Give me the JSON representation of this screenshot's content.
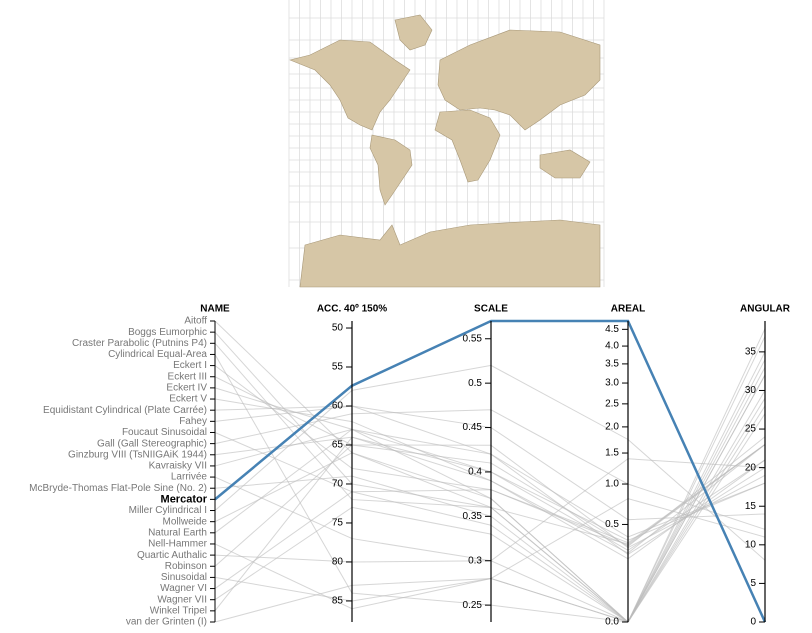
{
  "chart_data": {
    "type": "parallel",
    "category_title": "NAME",
    "dimensions": [
      {
        "name": "ACC. 40º 150%",
        "ylim": [
          87.7,
          49.1
        ],
        "yticks": [
          50,
          55,
          60,
          65,
          70,
          75,
          80,
          85
        ]
      },
      {
        "name": "SCALE",
        "ylim": [
          0.231,
          0.57
        ],
        "yticks": [
          0.25,
          0.3,
          0.35,
          0.4,
          0.45,
          0.5,
          0.55
        ]
      },
      {
        "name": "AREAL",
        "scale": "sqrt",
        "ylim": [
          0,
          4.76
        ],
        "yticks": [
          {
            "value": 0,
            "label": "0.0"
          },
          0.5,
          {
            "value": 1,
            "label": "1.0"
          },
          1.5,
          {
            "value": 2,
            "label": "2.0"
          },
          2.5,
          {
            "value": 3,
            "label": "3.0"
          },
          3.5,
          {
            "value": 4,
            "label": "4.0"
          },
          4.5
        ]
      },
      {
        "name": "ANGULAR",
        "ylim": [
          0,
          39
        ],
        "yticks": [
          0,
          5,
          10,
          15,
          20,
          25,
          30,
          35
        ]
      }
    ],
    "series": [
      {
        "name": "Aitoff",
        "color": "#bbbbbb",
        "values": [
          66,
          0.36,
          0.32,
          23
        ]
      },
      {
        "name": "Boggs Eumorphic",
        "color": "#bbbbbb",
        "values": [
          70,
          0.36,
          0,
          32
        ]
      },
      {
        "name": "Craster Parabolic (Putnins P4)",
        "color": "#bbbbbb",
        "values": [
          72,
          0.36,
          0,
          33
        ]
      },
      {
        "name": "Cylindrical Equal-Area",
        "color": "#bbbbbb",
        "values": [
          84,
          0.25,
          0,
          30
        ]
      },
      {
        "name": "Eckert I",
        "color": "#bbbbbb",
        "values": [
          68,
          0.38,
          0.33,
          23
        ]
      },
      {
        "name": "Eckert III",
        "color": "#bbbbbb",
        "values": [
          65,
          0.41,
          0.3,
          24
        ]
      },
      {
        "name": "Eckert IV",
        "color": "#bbbbbb",
        "values": [
          63,
          0.37,
          0,
          28
        ]
      },
      {
        "name": "Eckert V",
        "color": "#bbbbbb",
        "values": [
          62,
          0.39,
          0.25,
          23
        ]
      },
      {
        "name": "Equidistant Cylindrical (Plate Carrée)",
        "color": "#bbbbbb",
        "values": [
          60,
          0.42,
          0.38,
          18
        ]
      },
      {
        "name": "Fahey",
        "color": "#bbbbbb",
        "values": [
          60,
          0.45,
          0.55,
          14
        ]
      },
      {
        "name": "Foucaut Sinusoidal",
        "color": "#bbbbbb",
        "values": [
          71,
          0.34,
          0,
          34
        ]
      },
      {
        "name": "Gall (Gall Stereographic)",
        "color": "#bbbbbb",
        "values": [
          61,
          0.47,
          1.0,
          12
        ]
      },
      {
        "name": "Ginzburg VIII (TsNIIGAiK 1944)",
        "color": "#bbbbbb",
        "values": [
          64,
          0.4,
          0.35,
          18
        ]
      },
      {
        "name": "Kavraisky VII",
        "color": "#bbbbbb",
        "values": [
          63,
          0.4,
          0.27,
          21
        ]
      },
      {
        "name": "Larrivée",
        "color": "#bbbbbb",
        "values": [
          77,
          0.3,
          1.4,
          20
        ]
      },
      {
        "name": "McBryde-Thomas Flat-Pole Sine (No. 2)",
        "color": "#bbbbbb",
        "values": [
          69,
          0.35,
          0,
          32
        ]
      },
      {
        "name": "Mercator",
        "color": "#4682b4",
        "highlight": true,
        "values": [
          57.4,
          0.57,
          4.76,
          0
        ]
      },
      {
        "name": "Miller Cylindrical I",
        "color": "#bbbbbb",
        "values": [
          58,
          0.52,
          1.75,
          8
        ]
      },
      {
        "name": "Mollweide",
        "color": "#bbbbbb",
        "values": [
          66,
          0.37,
          0,
          29
        ]
      },
      {
        "name": "Natural Earth",
        "color": "#bbbbbb",
        "values": [
          63,
          0.42,
          0.24,
          20
        ]
      },
      {
        "name": "Nell-Hammer",
        "color": "#bbbbbb",
        "values": [
          86,
          0.28,
          0,
          38
        ]
      },
      {
        "name": "Quartic Authalic",
        "color": "#bbbbbb",
        "values": [
          80,
          0.3,
          0,
          35
        ]
      },
      {
        "name": "Robinson",
        "color": "#bbbbbb",
        "values": [
          65,
          0.43,
          0.29,
          19
        ]
      },
      {
        "name": "Sinusoidal",
        "color": "#bbbbbb",
        "values": [
          85,
          0.28,
          0,
          37
        ]
      },
      {
        "name": "Wagner VI",
        "color": "#bbbbbb",
        "values": [
          71,
          0.38,
          0.31,
          23
        ]
      },
      {
        "name": "Wagner VII",
        "color": "#bbbbbb",
        "values": [
          73,
          0.33,
          0,
          27
        ]
      },
      {
        "name": "Winkel Tripel",
        "color": "#bbbbbb",
        "values": [
          64,
          0.39,
          0.21,
          21
        ]
      },
      {
        "name": "van der Grinten (I)",
        "color": "#bbbbbb",
        "values": [
          83,
          0.28,
          0.8,
          11
        ]
      }
    ]
  }
}
